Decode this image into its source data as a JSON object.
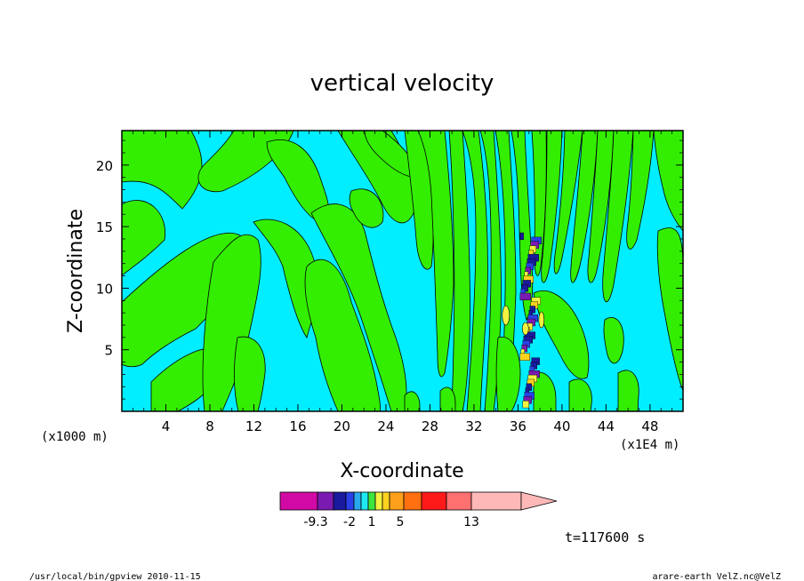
{
  "chart_data": {
    "type": "heatmap",
    "title": "vertical velocity",
    "xlabel": "X-coordinate",
    "ylabel": "Z-coordinate",
    "x_units": "(x1E4 m)",
    "z_units": "(x1000 m)",
    "xlim": [
      0,
      51
    ],
    "ylim": [
      0,
      22.8
    ],
    "x_ticks": [
      4,
      8,
      12,
      16,
      20,
      24,
      28,
      32,
      36,
      40,
      44,
      48
    ],
    "y_ticks": [
      5,
      10,
      15,
      20
    ],
    "time_label": "t=117600 s",
    "colorbar": {
      "colors": [
        "#d10aa6",
        "#7a1ab0",
        "#1a1a9e",
        "#2a40e6",
        "#2aa8ee",
        "#1ee8f2",
        "#3ce63c",
        "#f2f240",
        "#ffd21e",
        "#ffa01a",
        "#ff7010",
        "#ff1a1a",
        "#ff7070",
        "#ffb8b8"
      ],
      "labels": [
        "-9.3",
        "-2",
        "1",
        "5",
        "13"
      ]
    },
    "features": {
      "background_level": "#00eeff",
      "positive_level": "#33ee00",
      "strong_core_x": 37,
      "strong_core_z": [
        0.5,
        14.5
      ]
    },
    "grid": false
  },
  "footer": {
    "left": "/usr/local/bin/gpview   2010-11-15",
    "right": "arare-earth_VelZ.nc@VelZ"
  },
  "colors": {
    "frame": "#000000",
    "cyan": "#00eeff",
    "green": "#33ee00"
  }
}
